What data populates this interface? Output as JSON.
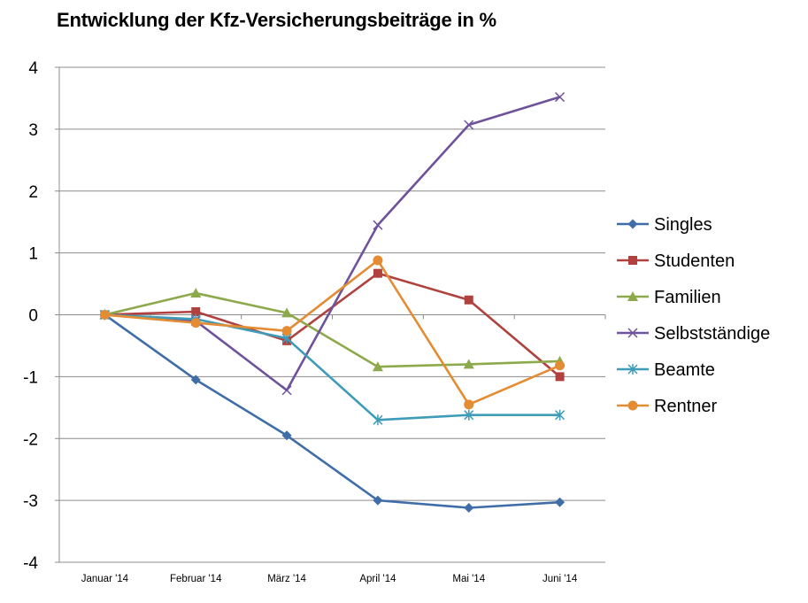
{
  "chart_data": {
    "type": "line",
    "title": "Entwicklung der Kfz-Versicherungsbeiträge in %",
    "categories": [
      "Januar '14",
      "Februar '14",
      "März '14",
      "April '14",
      "Mai '14",
      "Juni '14"
    ],
    "ylim": [
      -4,
      4
    ],
    "yticks": [
      "4",
      "3",
      "2",
      "1",
      "0",
      "-1",
      "-2",
      "-3",
      "-4"
    ],
    "grid": true,
    "legend_position": "right",
    "series": [
      {
        "name": "Singles",
        "color": "#3E6DA8",
        "marker": "diamond",
        "values": [
          0,
          -1.05,
          -1.95,
          -3.0,
          -3.12,
          -3.03
        ]
      },
      {
        "name": "Studenten",
        "color": "#B0413E",
        "marker": "square",
        "values": [
          0,
          0.05,
          -0.42,
          0.67,
          0.24,
          -1.0
        ]
      },
      {
        "name": "Familien",
        "color": "#8CAA4B",
        "marker": "triangle",
        "values": [
          0,
          0.35,
          0.03,
          -0.84,
          -0.8,
          -0.75
        ]
      },
      {
        "name": "Selbstständige",
        "color": "#6E529B",
        "marker": "x",
        "values": [
          0,
          -0.1,
          -1.22,
          1.45,
          3.07,
          3.52
        ]
      },
      {
        "name": "Beamte",
        "color": "#3E9CB8",
        "marker": "star",
        "values": [
          0,
          -0.07,
          -0.38,
          -1.7,
          -1.62,
          -1.62
        ]
      },
      {
        "name": "Rentner",
        "color": "#E48C33",
        "marker": "circle",
        "values": [
          0,
          -0.13,
          -0.26,
          0.88,
          -1.45,
          -0.82
        ]
      }
    ]
  }
}
